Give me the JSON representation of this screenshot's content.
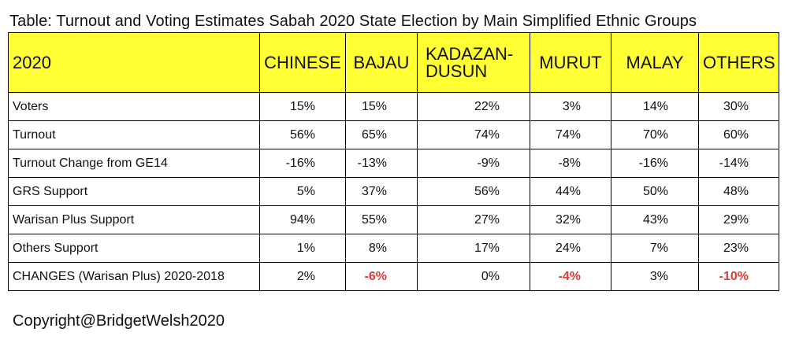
{
  "title": "Table: Turnout and Voting Estimates Sabah 2020 State Election by Main Simplified Ethnic Groups",
  "copyright": "Copyright@BridgetWelsh2020",
  "colors": {
    "header_bg": "#ffff33",
    "negative_highlight": "#e53935",
    "border": "#000000"
  },
  "chart_data": {
    "type": "table",
    "title": "Table: Turnout and Voting Estimates Sabah 2020 State Election by Main Simplified Ethnic Groups",
    "columns": [
      "2020",
      "CHINESE",
      "BAJAU",
      "KADAZAN-DUSUN",
      "MURUT",
      "MALAY",
      "OTHERS"
    ],
    "rows": [
      {
        "label": "Voters",
        "values": [
          "15%",
          "15%",
          "22%",
          "3%",
          "14%",
          "30%"
        ],
        "highlight": [
          false,
          false,
          false,
          false,
          false,
          false
        ]
      },
      {
        "label": "Turnout",
        "values": [
          "56%",
          "65%",
          "74%",
          "74%",
          "70%",
          "60%"
        ],
        "highlight": [
          false,
          false,
          false,
          false,
          false,
          false
        ]
      },
      {
        "label": "Turnout Change from GE14",
        "values": [
          "-16%",
          "-13%",
          "-9%",
          "-8%",
          "-16%",
          "-14%"
        ],
        "highlight": [
          false,
          false,
          false,
          false,
          false,
          false
        ]
      },
      {
        "label": "GRS Support",
        "values": [
          "5%",
          "37%",
          "56%",
          "44%",
          "50%",
          "48%"
        ],
        "highlight": [
          false,
          false,
          false,
          false,
          false,
          false
        ]
      },
      {
        "label": "Warisan Plus Support",
        "values": [
          "94%",
          "55%",
          "27%",
          "32%",
          "43%",
          "29%"
        ],
        "highlight": [
          false,
          false,
          false,
          false,
          false,
          false
        ]
      },
      {
        "label": "Others Support",
        "values": [
          "1%",
          "8%",
          "17%",
          "24%",
          "7%",
          "23%"
        ],
        "highlight": [
          false,
          false,
          false,
          false,
          false,
          false
        ]
      },
      {
        "label": "CHANGES (Warisan Plus) 2020-2018",
        "values": [
          "2%",
          "-6%",
          "0%",
          "-4%",
          "3%",
          "-10%"
        ],
        "highlight": [
          false,
          true,
          false,
          true,
          false,
          true
        ]
      }
    ]
  }
}
